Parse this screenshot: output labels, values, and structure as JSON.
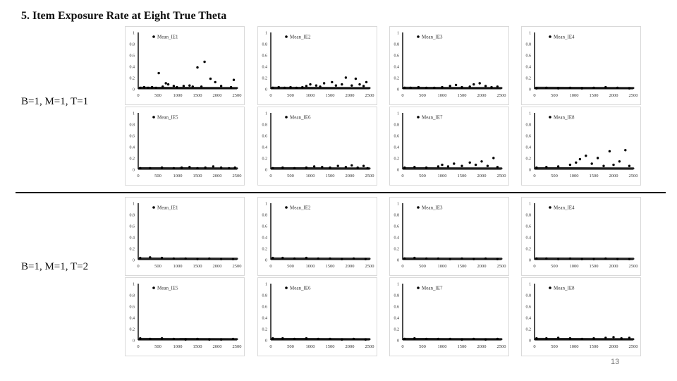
{
  "slide": {
    "title": "5. Item Exposure Rate at Eight True Theta",
    "page_number": "13",
    "divider_color": "#111111"
  },
  "conditions": [
    {
      "label": "B=1, M=1, T=1"
    },
    {
      "label": "B=1, M=1, T=2"
    }
  ],
  "chart_data": [
    {
      "type": "scatter",
      "condition": "B=1, M=1, T=1",
      "legend": "Mean_IE1",
      "x": [
        50,
        150,
        250,
        350,
        450,
        520,
        620,
        700,
        760,
        900,
        980,
        1150,
        1300,
        1380,
        1500,
        1600,
        1680,
        1830,
        1950,
        2100,
        2350,
        2420
      ],
      "y": [
        0.02,
        0.03,
        0.02,
        0.03,
        0.02,
        0.28,
        0.04,
        0.1,
        0.08,
        0.05,
        0.03,
        0.05,
        0.06,
        0.04,
        0.38,
        0.04,
        0.48,
        0.18,
        0.12,
        0.05,
        0.03,
        0.16
      ],
      "xlim": [
        0,
        2500
      ],
      "ylim": [
        0,
        1
      ],
      "xticks": [
        0,
        500,
        1000,
        1500,
        2000,
        2500
      ],
      "yticks": [
        0,
        0.2,
        0.4,
        0.6,
        0.8,
        1
      ],
      "color": "#000000"
    },
    {
      "type": "scatter",
      "condition": "B=1, M=1, T=1",
      "legend": "Mean_IE2",
      "x": [
        50,
        200,
        350,
        500,
        650,
        800,
        900,
        1000,
        1150,
        1250,
        1350,
        1550,
        1650,
        1800,
        1900,
        2050,
        2150,
        2250,
        2350,
        2420
      ],
      "y": [
        0.02,
        0.03,
        0.02,
        0.03,
        0.02,
        0.03,
        0.05,
        0.08,
        0.06,
        0.04,
        0.1,
        0.12,
        0.06,
        0.08,
        0.2,
        0.06,
        0.18,
        0.08,
        0.05,
        0.12
      ],
      "xlim": [
        0,
        2500
      ],
      "ylim": [
        0,
        1
      ],
      "xticks": [
        0,
        500,
        1000,
        1500,
        2000,
        2500
      ],
      "yticks": [
        0,
        0.2,
        0.4,
        0.6,
        0.8,
        1
      ],
      "color": "#000000"
    },
    {
      "type": "scatter",
      "condition": "B=1, M=1, T=1",
      "legend": "Mean_IE3",
      "x": [
        50,
        200,
        400,
        600,
        800,
        1000,
        1200,
        1350,
        1500,
        1700,
        1800,
        1950,
        2100,
        2250,
        2400
      ],
      "y": [
        0.02,
        0.02,
        0.03,
        0.02,
        0.02,
        0.03,
        0.05,
        0.07,
        0.03,
        0.04,
        0.08,
        0.1,
        0.05,
        0.03,
        0.04
      ],
      "xlim": [
        0,
        2500
      ],
      "ylim": [
        0,
        1
      ],
      "xticks": [
        0,
        500,
        1000,
        1500,
        2000,
        2500
      ],
      "yticks": [
        0,
        0.2,
        0.4,
        0.6,
        0.8,
        1
      ],
      "color": "#000000"
    },
    {
      "type": "scatter",
      "condition": "B=1, M=1, T=1",
      "legend": "Mean_IE4",
      "x": [
        50,
        300,
        600,
        900,
        1200,
        1500,
        1800,
        2100,
        2400
      ],
      "y": [
        0.01,
        0.02,
        0.01,
        0.02,
        0.01,
        0.02,
        0.03,
        0.02,
        0.01
      ],
      "xlim": [
        0,
        2500
      ],
      "ylim": [
        0,
        1
      ],
      "xticks": [
        0,
        500,
        1000,
        1500,
        2000,
        2500
      ],
      "yticks": [
        0,
        0.2,
        0.4,
        0.6,
        0.8,
        1
      ],
      "color": "#000000"
    },
    {
      "type": "scatter",
      "condition": "B=1, M=1, T=1",
      "legend": "Mean_IE5",
      "x": [
        50,
        300,
        600,
        900,
        1100,
        1300,
        1500,
        1700,
        1900,
        2100,
        2300,
        2450
      ],
      "y": [
        0.02,
        0.02,
        0.03,
        0.02,
        0.03,
        0.04,
        0.02,
        0.03,
        0.05,
        0.03,
        0.02,
        0.03
      ],
      "xlim": [
        0,
        2500
      ],
      "ylim": [
        0,
        1
      ],
      "xticks": [
        0,
        500,
        1000,
        1500,
        2000,
        2500
      ],
      "yticks": [
        0,
        0.2,
        0.4,
        0.6,
        0.8,
        1
      ],
      "color": "#000000"
    },
    {
      "type": "scatter",
      "condition": "B=1, M=1, T=1",
      "legend": "Mean_IE6",
      "x": [
        50,
        300,
        600,
        900,
        1100,
        1300,
        1500,
        1700,
        1900,
        2050,
        2200,
        2350,
        2450
      ],
      "y": [
        0.02,
        0.03,
        0.02,
        0.03,
        0.05,
        0.04,
        0.03,
        0.06,
        0.04,
        0.07,
        0.03,
        0.06,
        0.02
      ],
      "xlim": [
        0,
        2500
      ],
      "ylim": [
        0,
        1
      ],
      "xticks": [
        0,
        500,
        1000,
        1500,
        2000,
        2500
      ],
      "yticks": [
        0,
        0.2,
        0.4,
        0.6,
        0.8,
        1
      ],
      "color": "#000000"
    },
    {
      "type": "scatter",
      "condition": "B=1, M=1, T=1",
      "legend": "Mean_IE7",
      "x": [
        50,
        300,
        600,
        900,
        1000,
        1150,
        1300,
        1500,
        1700,
        1850,
        2000,
        2150,
        2300,
        2400
      ],
      "y": [
        0.03,
        0.04,
        0.03,
        0.05,
        0.08,
        0.05,
        0.1,
        0.06,
        0.12,
        0.08,
        0.14,
        0.06,
        0.2,
        0.04
      ],
      "xlim": [
        0,
        2500
      ],
      "ylim": [
        0,
        1
      ],
      "xticks": [
        0,
        500,
        1000,
        1500,
        2000,
        2500
      ],
      "yticks": [
        0,
        0.2,
        0.4,
        0.6,
        0.8,
        1
      ],
      "color": "#000000"
    },
    {
      "type": "scatter",
      "condition": "B=1, M=1, T=1",
      "legend": "Mean_IE8",
      "x": [
        50,
        300,
        600,
        900,
        1050,
        1150,
        1300,
        1450,
        1600,
        1750,
        1900,
        2000,
        2150,
        2300,
        2400
      ],
      "y": [
        0.03,
        0.04,
        0.05,
        0.08,
        0.12,
        0.18,
        0.24,
        0.1,
        0.2,
        0.06,
        0.32,
        0.08,
        0.14,
        0.34,
        0.06
      ],
      "xlim": [
        0,
        2500
      ],
      "ylim": [
        0,
        1
      ],
      "xticks": [
        0,
        500,
        1000,
        1500,
        2000,
        2500
      ],
      "yticks": [
        0,
        0.2,
        0.4,
        0.6,
        0.8,
        1
      ],
      "color": "#000000"
    },
    {
      "type": "scatter",
      "condition": "B=1, M=1, T=2",
      "legend": "Mean_IE1",
      "x": [
        50,
        300,
        600,
        900,
        1200,
        1500,
        1800,
        2100,
        2400
      ],
      "y": [
        0.03,
        0.04,
        0.03,
        0.02,
        0.02,
        0.01,
        0.02,
        0.01,
        0.01
      ],
      "xlim": [
        0,
        2500
      ],
      "ylim": [
        0,
        1
      ],
      "xticks": [
        0,
        500,
        1000,
        1500,
        2000,
        2500
      ],
      "yticks": [
        0,
        0.2,
        0.4,
        0.6,
        0.8,
        1
      ],
      "color": "#000000"
    },
    {
      "type": "scatter",
      "condition": "B=1, M=1, T=2",
      "legend": "Mean_IE2",
      "x": [
        50,
        300,
        600,
        900,
        1200,
        1500,
        1800,
        2100,
        2400
      ],
      "y": [
        0.03,
        0.03,
        0.02,
        0.03,
        0.02,
        0.02,
        0.01,
        0.02,
        0.01
      ],
      "xlim": [
        0,
        2500
      ],
      "ylim": [
        0,
        1
      ],
      "xticks": [
        0,
        500,
        1000,
        1500,
        2000,
        2500
      ],
      "yticks": [
        0,
        0.2,
        0.4,
        0.6,
        0.8,
        1
      ],
      "color": "#000000"
    },
    {
      "type": "scatter",
      "condition": "B=1, M=1, T=2",
      "legend": "Mean_IE3",
      "x": [
        50,
        300,
        600,
        900,
        1200,
        1500,
        1800,
        2100,
        2400
      ],
      "y": [
        0.02,
        0.03,
        0.02,
        0.02,
        0.01,
        0.02,
        0.01,
        0.02,
        0.01
      ],
      "xlim": [
        0,
        2500
      ],
      "ylim": [
        0,
        1
      ],
      "xticks": [
        0,
        500,
        1000,
        1500,
        2000,
        2500
      ],
      "yticks": [
        0,
        0.2,
        0.4,
        0.6,
        0.8,
        1
      ],
      "color": "#000000"
    },
    {
      "type": "scatter",
      "condition": "B=1, M=1, T=2",
      "legend": "Mean_IE4",
      "x": [
        50,
        300,
        600,
        900,
        1200,
        1500,
        1800,
        2100,
        2400
      ],
      "y": [
        0.02,
        0.02,
        0.01,
        0.02,
        0.01,
        0.01,
        0.02,
        0.01,
        0.01
      ],
      "xlim": [
        0,
        2500
      ],
      "ylim": [
        0,
        1
      ],
      "xticks": [
        0,
        500,
        1000,
        1500,
        2000,
        2500
      ],
      "yticks": [
        0,
        0.2,
        0.4,
        0.6,
        0.8,
        1
      ],
      "color": "#000000"
    },
    {
      "type": "scatter",
      "condition": "B=1, M=1, T=2",
      "legend": "Mean_IE5",
      "x": [
        50,
        300,
        600,
        900,
        1200,
        1500,
        1800,
        2100,
        2400
      ],
      "y": [
        0.03,
        0.02,
        0.03,
        0.02,
        0.01,
        0.02,
        0.01,
        0.01,
        0.02
      ],
      "xlim": [
        0,
        2500
      ],
      "ylim": [
        0,
        1
      ],
      "xticks": [
        0,
        500,
        1000,
        1500,
        2000,
        2500
      ],
      "yticks": [
        0,
        0.2,
        0.4,
        0.6,
        0.8,
        1
      ],
      "color": "#000000"
    },
    {
      "type": "scatter",
      "condition": "B=1, M=1, T=2",
      "legend": "Mean_IE6",
      "x": [
        50,
        300,
        600,
        900,
        1200,
        1500,
        1800,
        2100,
        2400
      ],
      "y": [
        0.03,
        0.03,
        0.02,
        0.03,
        0.02,
        0.02,
        0.01,
        0.02,
        0.01
      ],
      "xlim": [
        0,
        2500
      ],
      "ylim": [
        0,
        1
      ],
      "xticks": [
        0,
        500,
        1000,
        1500,
        2000,
        2500
      ],
      "yticks": [
        0,
        0.2,
        0.4,
        0.6,
        0.8,
        1
      ],
      "color": "#000000"
    },
    {
      "type": "scatter",
      "condition": "B=1, M=1, T=2",
      "legend": "Mean_IE7",
      "x": [
        50,
        300,
        600,
        900,
        1200,
        1500,
        1800,
        2100,
        2400
      ],
      "y": [
        0.02,
        0.03,
        0.02,
        0.02,
        0.02,
        0.01,
        0.02,
        0.01,
        0.02
      ],
      "xlim": [
        0,
        2500
      ],
      "ylim": [
        0,
        1
      ],
      "xticks": [
        0,
        500,
        1000,
        1500,
        2000,
        2500
      ],
      "yticks": [
        0,
        0.2,
        0.4,
        0.6,
        0.8,
        1
      ],
      "color": "#000000"
    },
    {
      "type": "scatter",
      "condition": "B=1, M=1, T=2",
      "legend": "Mean_IE8",
      "x": [
        50,
        300,
        600,
        900,
        1200,
        1500,
        1800,
        2000,
        2200,
        2400
      ],
      "y": [
        0.03,
        0.03,
        0.04,
        0.03,
        0.02,
        0.03,
        0.04,
        0.05,
        0.03,
        0.04
      ],
      "xlim": [
        0,
        2500
      ],
      "ylim": [
        0,
        1
      ],
      "xticks": [
        0,
        500,
        1000,
        1500,
        2000,
        2500
      ],
      "yticks": [
        0,
        0.2,
        0.4,
        0.6,
        0.8,
        1
      ],
      "color": "#000000"
    }
  ]
}
